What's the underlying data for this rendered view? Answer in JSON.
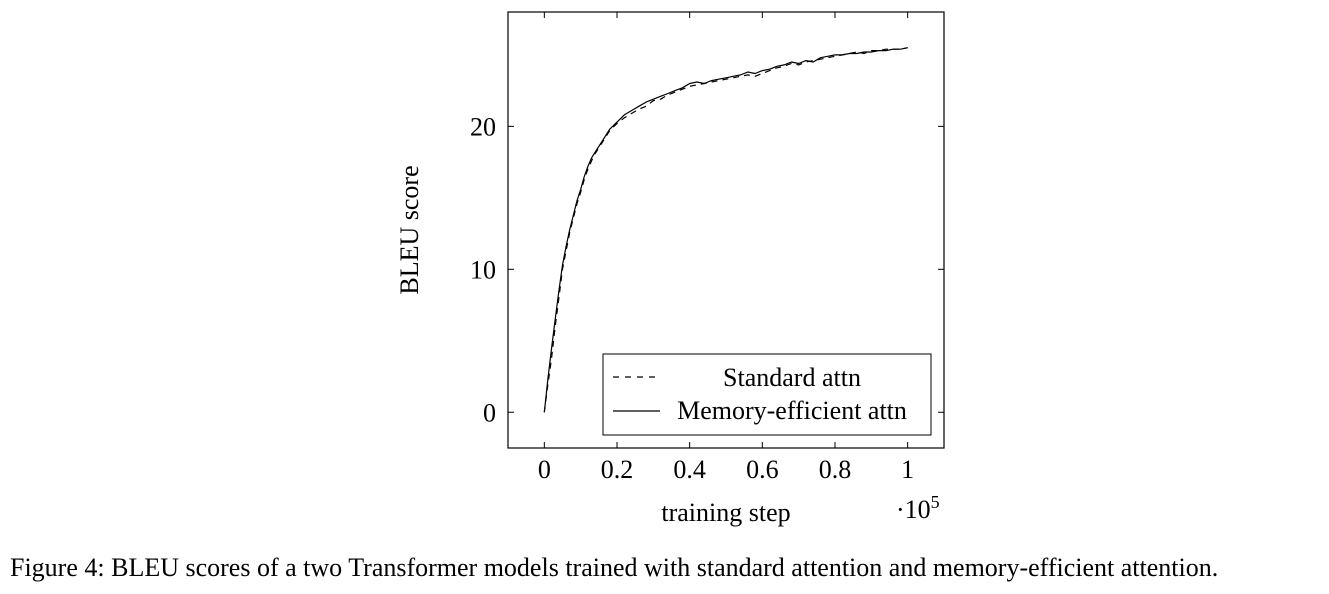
{
  "chart_data": {
    "type": "line",
    "xlabel": "training step",
    "ylabel": "BLEU score",
    "x_scale_base": "·10",
    "x_scale_exponent": "5",
    "xlim": [
      -0.1,
      1.1
    ],
    "ylim": [
      -2.5,
      28
    ],
    "xticks": [
      0,
      0.2,
      0.4,
      0.6,
      0.8,
      1
    ],
    "xtick_labels": [
      "0",
      "0.2",
      "0.4",
      "0.6",
      "0.8",
      "1"
    ],
    "yticks": [
      0,
      10,
      20
    ],
    "ytick_labels": [
      "0",
      "10",
      "20"
    ],
    "legend": {
      "position": "bottom-right",
      "entries": [
        "Standard attn",
        "Memory-efficient attn"
      ]
    },
    "series": [
      {
        "name": "Standard attn",
        "style": "dashed",
        "x": [
          0,
          0.01,
          0.02,
          0.03,
          0.04,
          0.05,
          0.06,
          0.07,
          0.08,
          0.09,
          0.1,
          0.11,
          0.12,
          0.13,
          0.14,
          0.15,
          0.16,
          0.18,
          0.2,
          0.22,
          0.24,
          0.26,
          0.28,
          0.3,
          0.32,
          0.34,
          0.36,
          0.38,
          0.4,
          0.42,
          0.44,
          0.46,
          0.48,
          0.5,
          0.52,
          0.54,
          0.56,
          0.58,
          0.6,
          0.62,
          0.64,
          0.66,
          0.68,
          0.7,
          0.72,
          0.74,
          0.76,
          0.78,
          0.8,
          0.82,
          0.84,
          0.86,
          0.88,
          0.9,
          0.92,
          0.94,
          0.96,
          0.98,
          1.0
        ],
        "values": [
          0.0,
          2.0,
          3.8,
          6.0,
          8.0,
          10.0,
          11.3,
          12.6,
          13.6,
          14.6,
          15.4,
          16.3,
          17.0,
          17.6,
          18.1,
          18.5,
          18.9,
          19.7,
          20.2,
          20.6,
          20.9,
          21.2,
          21.4,
          21.8,
          21.9,
          22.2,
          22.4,
          22.6,
          22.8,
          22.9,
          23.0,
          23.1,
          23.2,
          23.3,
          23.4,
          23.5,
          23.6,
          23.5,
          23.7,
          23.9,
          24.1,
          24.2,
          24.4,
          24.3,
          24.5,
          24.6,
          24.7,
          24.8,
          24.9,
          25.0,
          25.1,
          25.2,
          25.1,
          25.3,
          25.3,
          25.4,
          25.4,
          25.4,
          25.5
        ]
      },
      {
        "name": "Memory-efficient attn",
        "style": "solid",
        "x": [
          0,
          0.01,
          0.02,
          0.03,
          0.04,
          0.05,
          0.06,
          0.07,
          0.08,
          0.09,
          0.1,
          0.11,
          0.12,
          0.13,
          0.14,
          0.15,
          0.16,
          0.18,
          0.2,
          0.22,
          0.24,
          0.26,
          0.28,
          0.3,
          0.32,
          0.34,
          0.36,
          0.38,
          0.4,
          0.42,
          0.44,
          0.46,
          0.48,
          0.5,
          0.52,
          0.54,
          0.56,
          0.58,
          0.6,
          0.62,
          0.64,
          0.66,
          0.68,
          0.7,
          0.72,
          0.74,
          0.76,
          0.78,
          0.8,
          0.82,
          0.84,
          0.86,
          0.88,
          0.9,
          0.92,
          0.94,
          0.96,
          0.98,
          1.0
        ],
        "values": [
          0.0,
          2.4,
          4.5,
          6.5,
          8.5,
          10.3,
          11.6,
          12.8,
          13.8,
          14.8,
          15.6,
          16.5,
          17.2,
          17.8,
          18.2,
          18.6,
          19.0,
          19.8,
          20.3,
          20.8,
          21.1,
          21.4,
          21.7,
          21.9,
          22.1,
          22.3,
          22.5,
          22.7,
          23.0,
          23.1,
          23.0,
          23.2,
          23.3,
          23.4,
          23.5,
          23.6,
          23.8,
          23.7,
          23.9,
          24.0,
          24.2,
          24.3,
          24.5,
          24.4,
          24.6,
          24.5,
          24.8,
          24.9,
          25.0,
          25.0,
          25.1,
          25.1,
          25.2,
          25.2,
          25.3,
          25.3,
          25.4,
          25.4,
          25.5
        ]
      }
    ]
  },
  "caption": "Figure 4: BLEU scores of a two Transformer models trained with standard attention and memory-efficient attention."
}
